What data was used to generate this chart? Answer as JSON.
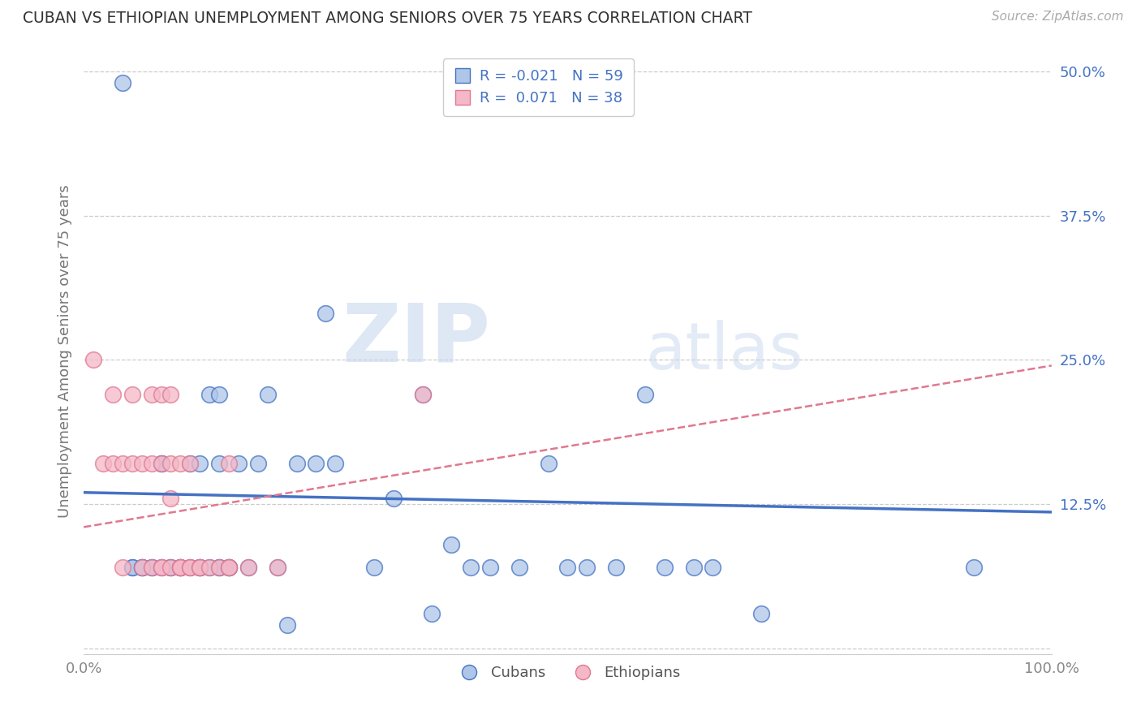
{
  "title": "CUBAN VS ETHIOPIAN UNEMPLOYMENT AMONG SENIORS OVER 75 YEARS CORRELATION CHART",
  "source": "Source: ZipAtlas.com",
  "ylabel": "Unemployment Among Seniors over 75 years",
  "xlim": [
    0.0,
    1.0
  ],
  "ylim": [
    -0.005,
    0.52
  ],
  "yticks": [
    0.0,
    0.125,
    0.25,
    0.375,
    0.5
  ],
  "ytick_labels": [
    "",
    "12.5%",
    "25.0%",
    "37.5%",
    "50.0%"
  ],
  "cuban_color": "#aec6e8",
  "ethiopian_color": "#f4b8c8",
  "cuban_line_color": "#4472c4",
  "ethiopian_line_color": "#e07890",
  "background_color": "#ffffff",
  "watermark_zip": "ZIP",
  "watermark_atlas": "atlas",
  "cuban_x": [
    0.04,
    0.05,
    0.05,
    0.06,
    0.06,
    0.06,
    0.07,
    0.07,
    0.08,
    0.08,
    0.08,
    0.09,
    0.09,
    0.1,
    0.1,
    0.1,
    0.11,
    0.11,
    0.12,
    0.12,
    0.12,
    0.12,
    0.13,
    0.13,
    0.14,
    0.14,
    0.14,
    0.14,
    0.15,
    0.15,
    0.15,
    0.16,
    0.17,
    0.18,
    0.19,
    0.2,
    0.21,
    0.22,
    0.24,
    0.25,
    0.26,
    0.3,
    0.32,
    0.35,
    0.36,
    0.38,
    0.4,
    0.42,
    0.45,
    0.48,
    0.5,
    0.52,
    0.55,
    0.58,
    0.6,
    0.63,
    0.65,
    0.7,
    0.92
  ],
  "cuban_y": [
    0.49,
    0.07,
    0.07,
    0.07,
    0.07,
    0.07,
    0.07,
    0.07,
    0.16,
    0.16,
    0.07,
    0.07,
    0.07,
    0.07,
    0.07,
    0.07,
    0.07,
    0.16,
    0.07,
    0.07,
    0.16,
    0.07,
    0.07,
    0.22,
    0.07,
    0.22,
    0.07,
    0.16,
    0.07,
    0.07,
    0.07,
    0.16,
    0.07,
    0.16,
    0.22,
    0.07,
    0.02,
    0.16,
    0.16,
    0.29,
    0.16,
    0.07,
    0.13,
    0.22,
    0.03,
    0.09,
    0.07,
    0.07,
    0.07,
    0.16,
    0.07,
    0.07,
    0.07,
    0.22,
    0.07,
    0.07,
    0.07,
    0.03,
    0.07
  ],
  "ethiopian_x": [
    0.01,
    0.02,
    0.03,
    0.03,
    0.04,
    0.04,
    0.05,
    0.05,
    0.06,
    0.06,
    0.07,
    0.07,
    0.07,
    0.08,
    0.08,
    0.08,
    0.08,
    0.09,
    0.09,
    0.09,
    0.09,
    0.1,
    0.1,
    0.1,
    0.1,
    0.11,
    0.11,
    0.11,
    0.12,
    0.12,
    0.13,
    0.14,
    0.15,
    0.15,
    0.15,
    0.17,
    0.2,
    0.35
  ],
  "ethiopian_y": [
    0.25,
    0.16,
    0.22,
    0.16,
    0.16,
    0.07,
    0.16,
    0.22,
    0.16,
    0.07,
    0.16,
    0.22,
    0.07,
    0.16,
    0.22,
    0.07,
    0.07,
    0.13,
    0.16,
    0.22,
    0.07,
    0.07,
    0.07,
    0.16,
    0.07,
    0.07,
    0.07,
    0.16,
    0.07,
    0.07,
    0.07,
    0.07,
    0.07,
    0.07,
    0.16,
    0.07,
    0.07,
    0.22
  ],
  "cuban_trend_x": [
    0.0,
    1.0
  ],
  "cuban_trend_y": [
    0.135,
    0.118
  ],
  "ethiopian_trend_x": [
    0.0,
    1.0
  ],
  "ethiopian_trend_y": [
    0.105,
    0.245
  ]
}
